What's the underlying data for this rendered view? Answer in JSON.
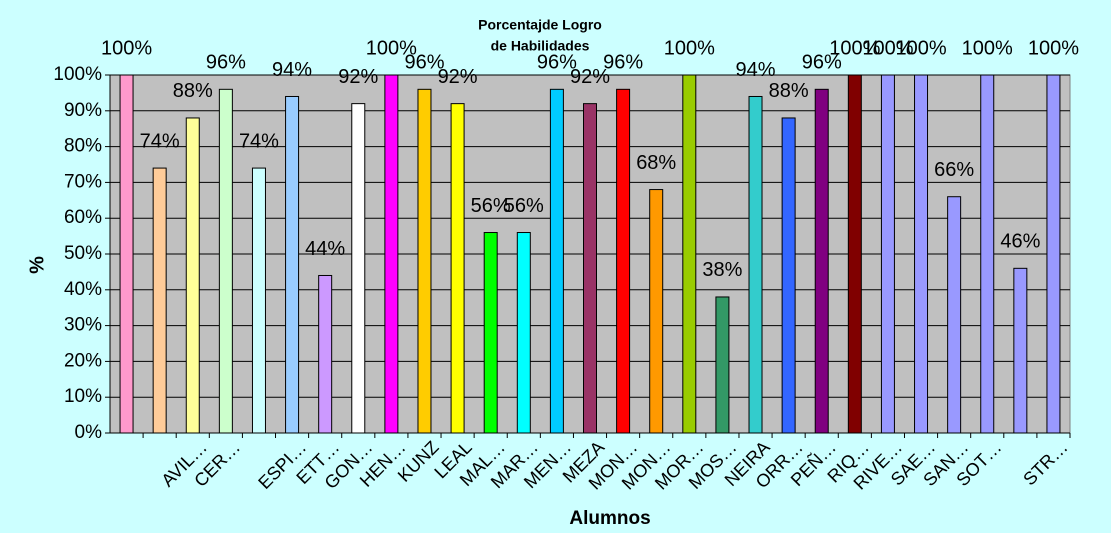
{
  "chart_data": {
    "type": "bar",
    "title": [
      "Porcentajde  Logro",
      "de  Habilidades"
    ],
    "x_label": "Alumnos",
    "y_label": "%",
    "categories": [
      null,
      null,
      "AVIL…",
      "CER…",
      null,
      "ESPI…",
      "ETT…",
      "GON…",
      "HEN…",
      "KUNZ",
      "LEAL",
      "MAL…",
      "MAR…",
      "MEN…",
      "MEZA",
      "MON…",
      "MON…",
      "MOR…",
      "MOS…",
      "NEIRA",
      "ORR…",
      "PEÑ…",
      "RIQ…",
      "RIVE…",
      "SAE…",
      "SAN…",
      "SOT…",
      null,
      "STR…"
    ],
    "values": [
      100,
      74,
      88,
      96,
      74,
      94,
      44,
      92,
      100,
      96,
      92,
      56,
      56,
      96,
      92,
      96,
      68,
      100,
      38,
      94,
      88,
      96,
      100,
      100,
      100,
      66,
      100,
      46,
      100
    ],
    "value_labels": [
      "100%",
      "74%",
      "88%",
      "96%",
      "74%",
      "94%",
      "44%",
      "92%",
      "100%",
      "96%",
      "92%",
      "56%",
      "56%",
      "96%",
      "92%",
      "96%",
      "68%",
      "100%",
      "38%",
      "94%",
      "88%",
      "96%",
      "100%",
      "100%",
      "100%",
      "66%",
      "100%",
      "46%",
      "100%"
    ],
    "colors": [
      "#ff99cc",
      "#ffcc99",
      "#ffff99",
      "#ccffcc",
      "#ccffff",
      "#99ccff",
      "#cc99ff",
      "#ffffff",
      "#ff00ff",
      "#ffcc00",
      "#ffff00",
      "#00ff00",
      "#00ffff",
      "#00ccff",
      "#993366",
      "#ff0000",
      "#ff9900",
      "#99cc00",
      "#339966",
      "#33cccc",
      "#3366ff",
      "#800080",
      "#800000",
      "#9999ff",
      "#9999ff",
      "#9999ff",
      "#9999ff",
      "#9999ff",
      "#9999ff"
    ],
    "ylim": [
      0,
      100
    ],
    "yticks": [
      {
        "value": 0,
        "label": "0%"
      },
      {
        "value": 10,
        "label": "10%"
      },
      {
        "value": 20,
        "label": "20%"
      },
      {
        "value": 30,
        "label": "30%"
      },
      {
        "value": 40,
        "label": "40%"
      },
      {
        "value": 50,
        "label": "50%"
      },
      {
        "value": 60,
        "label": "60%"
      },
      {
        "value": 70,
        "label": "70%"
      },
      {
        "value": 80,
        "label": "80%"
      },
      {
        "value": 90,
        "label": "90%"
      },
      {
        "value": 100,
        "label": "100%"
      }
    ],
    "grid": true
  }
}
